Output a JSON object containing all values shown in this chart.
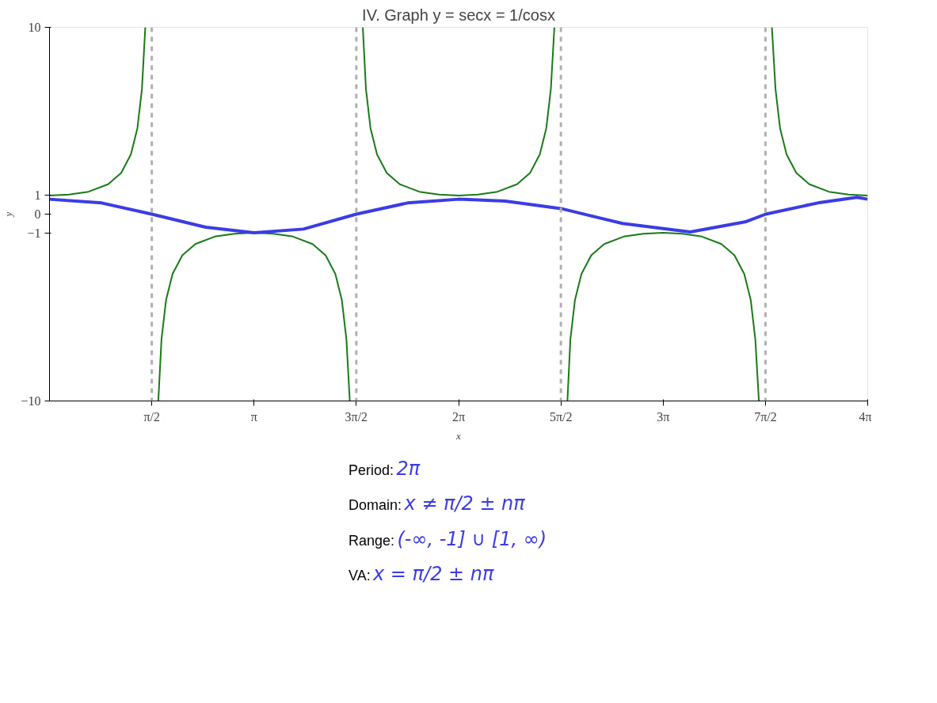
{
  "chart_data": {
    "type": "line",
    "title": "IV. Graph y = secx = 1/cosx",
    "xlabel": "x",
    "ylabel": "y",
    "xlim": [
      0,
      12.566
    ],
    "ylim": [
      -10,
      10
    ],
    "xticks": [
      {
        "value": 1.571,
        "label": "π/2"
      },
      {
        "value": 3.142,
        "label": "π"
      },
      {
        "value": 4.712,
        "label": "3π/2"
      },
      {
        "value": 6.283,
        "label": "2π"
      },
      {
        "value": 7.854,
        "label": "5π/2"
      },
      {
        "value": 9.425,
        "label": "3π"
      },
      {
        "value": 10.996,
        "label": "7π/2"
      },
      {
        "value": 12.566,
        "label": "4π"
      }
    ],
    "yticks": [
      -10,
      -1,
      0,
      1,
      10
    ],
    "series": [
      {
        "color": "#1a7a1a",
        "x": [
          0,
          0.3,
          0.6,
          0.9,
          1.1,
          1.25,
          1.35,
          1.42,
          1.471,
          1.571,
          1.671,
          1.72,
          1.79,
          1.89,
          2.04,
          2.24,
          2.54,
          2.84,
          3.142,
          3.44,
          3.74,
          4.04,
          4.24,
          4.39,
          4.49,
          4.56,
          4.612,
          4.712,
          4.812,
          4.86,
          4.93,
          5.03,
          5.18,
          5.38,
          5.68,
          5.98,
          6.283,
          6.58,
          6.88,
          7.18,
          7.38,
          7.53,
          7.63,
          7.7,
          7.754,
          7.854,
          7.954,
          8.0,
          8.07,
          8.17,
          8.32,
          8.52,
          8.82,
          9.12,
          9.425,
          9.72,
          10.02,
          10.32,
          10.52,
          10.67,
          10.77,
          10.84,
          10.895,
          10.996,
          11.095,
          11.15,
          11.22,
          11.32,
          11.47,
          11.67,
          11.97,
          12.27,
          12.566
        ],
        "values": [
          1,
          1.05,
          1.2,
          1.6,
          2.2,
          3.2,
          4.6,
          6.7,
          10,
          null,
          -10,
          -6.7,
          -4.6,
          -3.2,
          -2.2,
          -1.6,
          -1.2,
          -1.05,
          -1,
          -1.05,
          -1.2,
          -1.6,
          -2.2,
          -3.2,
          -4.6,
          -6.7,
          -10,
          null,
          10,
          6.7,
          4.6,
          3.2,
          2.2,
          1.6,
          1.2,
          1.05,
          1,
          1.05,
          1.2,
          1.6,
          2.2,
          3.2,
          4.6,
          6.7,
          10,
          null,
          -10,
          -6.7,
          -4.6,
          -3.2,
          -2.2,
          -1.6,
          -1.2,
          -1.05,
          -1,
          -1.05,
          -1.2,
          -1.6,
          -2.2,
          -3.2,
          -4.6,
          -6.7,
          -10,
          null,
          10,
          6.7,
          4.6,
          3.2,
          2.2,
          1.6,
          1.2,
          1.05,
          1
        ]
      },
      {
        "color": "#3c3ce6",
        "x": [
          0,
          0.8,
          1.571,
          2.4,
          3.142,
          3.9,
          4.712,
          5.5,
          6.283,
          7.0,
          7.854,
          8.8,
          9.84,
          10.7,
          11.0,
          11.8,
          12.4,
          12.566
        ],
        "values": [
          0.8,
          0.6,
          0,
          -0.7,
          -1,
          -0.8,
          0,
          0.6,
          0.8,
          0.7,
          0.3,
          -0.5,
          -0.95,
          -0.4,
          0,
          0.6,
          0.9,
          0.8
        ]
      }
    ],
    "ref_lines": [
      {
        "axis": "x",
        "value": 1.571,
        "color": "#b0b0b0",
        "line_style": "dashed"
      },
      {
        "axis": "x",
        "value": 4.712,
        "color": "#b0b0b0",
        "line_style": "dashed"
      },
      {
        "axis": "x",
        "value": 7.854,
        "color": "#b0b0b0",
        "line_style": "dashed"
      },
      {
        "axis": "x",
        "value": 10.996,
        "color": "#b0b0b0",
        "line_style": "dashed"
      }
    ],
    "annotations": [
      "Period:",
      "2π",
      "Domain:",
      "x ≠ π/2 ± nπ",
      "Range:",
      "(-∞, -1] ∪ [1, ∞)",
      "VA:",
      "x = π/2 ± nπ"
    ],
    "grid": false,
    "marker": "none",
    "line_style": "solid"
  }
}
